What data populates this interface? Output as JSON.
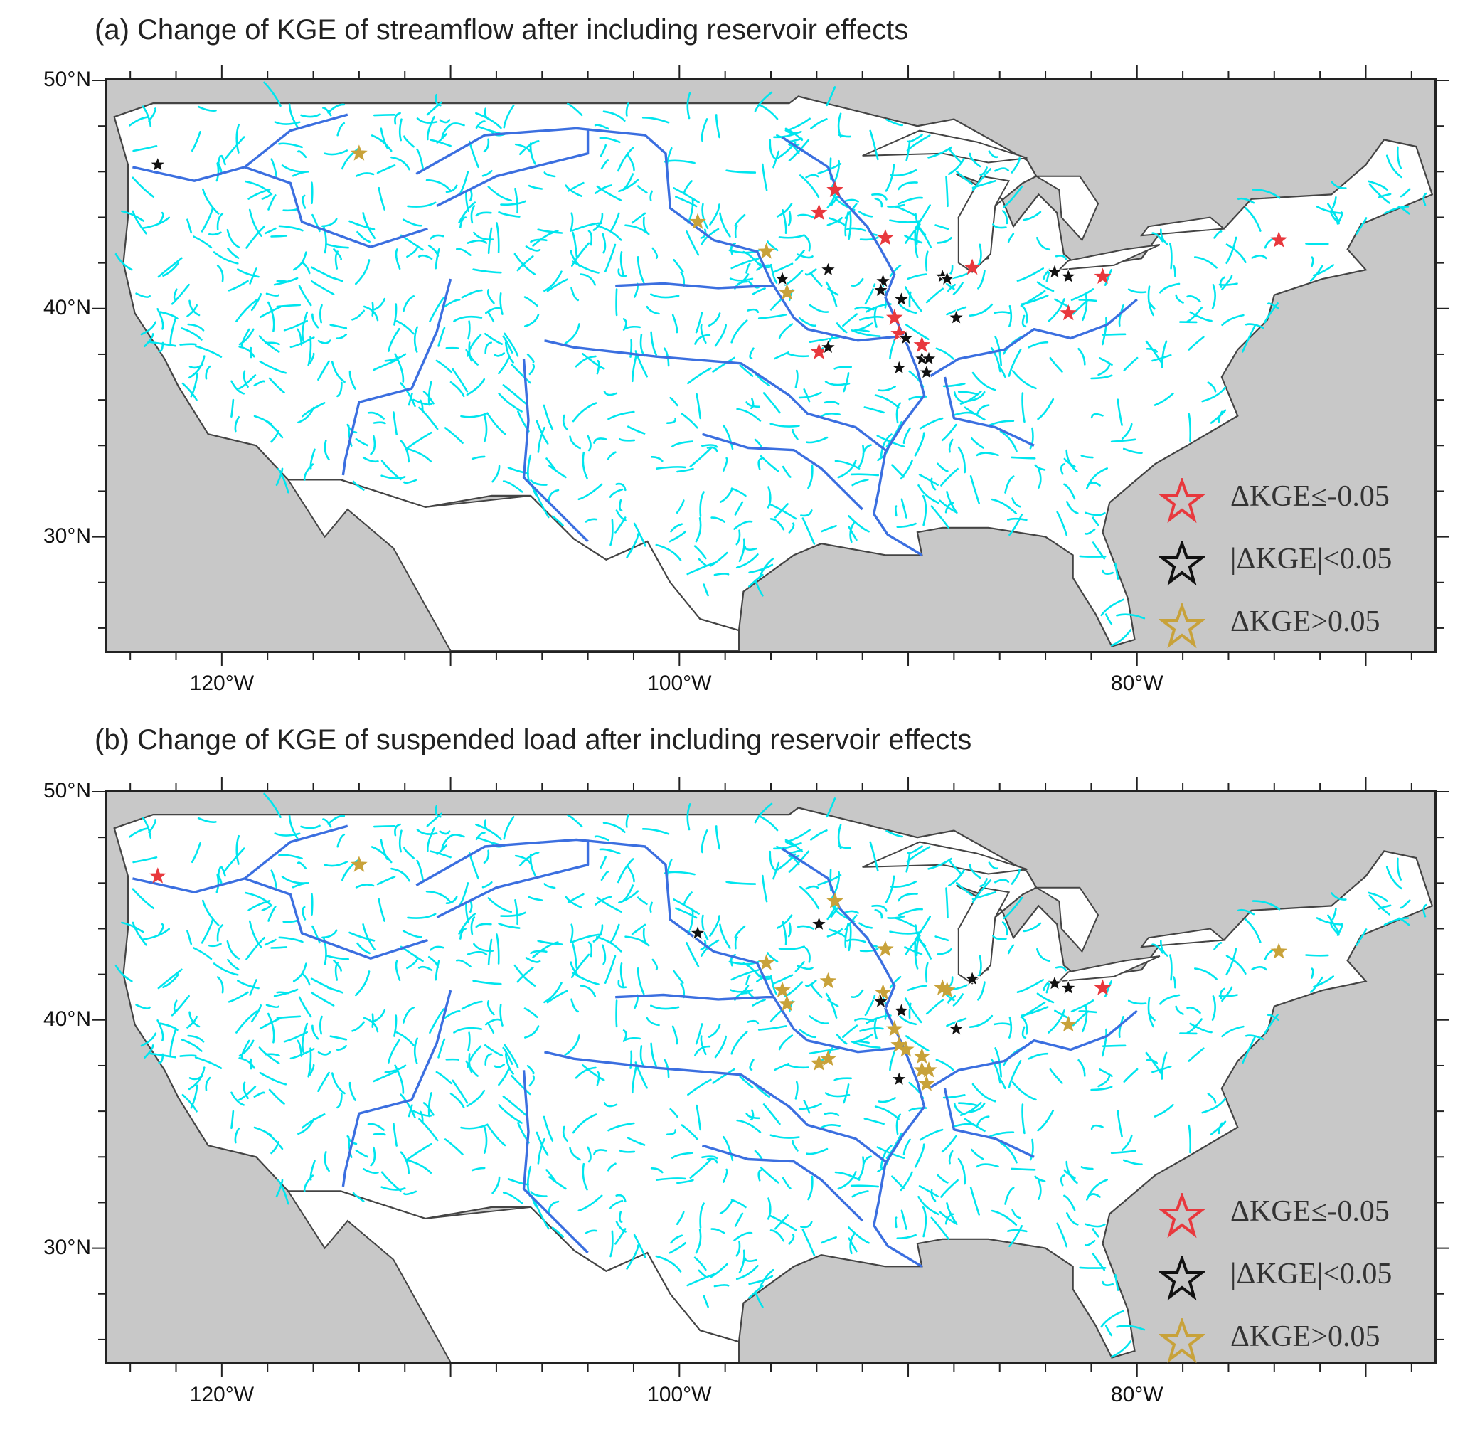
{
  "extent": {
    "lon_min": -125,
    "lon_max": -67,
    "lat_min": 25,
    "lat_max": 50
  },
  "colors": {
    "land": "#ffffff",
    "water_ocean": "#c8c8c8",
    "small_river": "#00e5ee",
    "major_river": "#3b6fe0",
    "coast": "#444444",
    "decrease": "#e8383d",
    "neutral": "#111111",
    "increase": "#c8a23a"
  },
  "axes": {
    "lat_ticks": [
      {
        "value": 50,
        "label": "50°N"
      },
      {
        "value": 40,
        "label": "40°N"
      },
      {
        "value": 30,
        "label": "30°N"
      }
    ],
    "lon_ticks": [
      {
        "value": -120,
        "label": "120°W"
      },
      {
        "value": -100,
        "label": "100°W"
      },
      {
        "value": -80,
        "label": "80°W"
      }
    ]
  },
  "legend": [
    {
      "category": "decrease",
      "label": "ΔKGE≤-0.05"
    },
    {
      "category": "neutral",
      "label": "|ΔKGE|<0.05"
    },
    {
      "category": "increase",
      "label": "ΔKGE>0.05"
    }
  ],
  "panels": [
    {
      "id": "a",
      "title": "(a) Change of KGE of streamflow after including reservoir effects",
      "sites": [
        {
          "lon": -122.8,
          "lat": 46.3,
          "cat": "neutral"
        },
        {
          "lon": -114.0,
          "lat": 46.8,
          "cat": "increase"
        },
        {
          "lon": -99.2,
          "lat": 43.8,
          "cat": "increase"
        },
        {
          "lon": -96.2,
          "lat": 42.5,
          "cat": "increase"
        },
        {
          "lon": -95.5,
          "lat": 41.3,
          "cat": "neutral"
        },
        {
          "lon": -95.3,
          "lat": 40.7,
          "cat": "increase"
        },
        {
          "lon": -93.9,
          "lat": 44.2,
          "cat": "decrease"
        },
        {
          "lon": -93.2,
          "lat": 45.2,
          "cat": "decrease"
        },
        {
          "lon": -91.0,
          "lat": 43.1,
          "cat": "decrease"
        },
        {
          "lon": -93.5,
          "lat": 41.7,
          "cat": "neutral"
        },
        {
          "lon": -91.1,
          "lat": 41.2,
          "cat": "neutral"
        },
        {
          "lon": -91.2,
          "lat": 40.8,
          "cat": "neutral"
        },
        {
          "lon": -90.3,
          "lat": 40.4,
          "cat": "neutral"
        },
        {
          "lon": -88.5,
          "lat": 41.4,
          "cat": "neutral"
        },
        {
          "lon": -88.3,
          "lat": 41.3,
          "cat": "neutral"
        },
        {
          "lon": -87.2,
          "lat": 41.8,
          "cat": "decrease"
        },
        {
          "lon": -87.9,
          "lat": 39.6,
          "cat": "neutral"
        },
        {
          "lon": -90.6,
          "lat": 39.6,
          "cat": "decrease"
        },
        {
          "lon": -90.4,
          "lat": 38.9,
          "cat": "decrease"
        },
        {
          "lon": -90.1,
          "lat": 38.7,
          "cat": "neutral"
        },
        {
          "lon": -89.4,
          "lat": 38.4,
          "cat": "decrease"
        },
        {
          "lon": -93.9,
          "lat": 38.1,
          "cat": "decrease"
        },
        {
          "lon": -93.5,
          "lat": 38.3,
          "cat": "neutral"
        },
        {
          "lon": -90.4,
          "lat": 37.4,
          "cat": "neutral"
        },
        {
          "lon": -89.4,
          "lat": 37.8,
          "cat": "neutral"
        },
        {
          "lon": -89.1,
          "lat": 37.8,
          "cat": "neutral"
        },
        {
          "lon": -89.2,
          "lat": 37.2,
          "cat": "neutral"
        },
        {
          "lon": -83.6,
          "lat": 41.6,
          "cat": "neutral"
        },
        {
          "lon": -83.0,
          "lat": 41.4,
          "cat": "neutral"
        },
        {
          "lon": -81.5,
          "lat": 41.4,
          "cat": "decrease"
        },
        {
          "lon": -83.0,
          "lat": 39.8,
          "cat": "decrease"
        },
        {
          "lon": -73.8,
          "lat": 43.0,
          "cat": "decrease"
        }
      ]
    },
    {
      "id": "b",
      "title": "(b) Change of KGE of suspended load after including reservoir effects",
      "sites": [
        {
          "lon": -122.8,
          "lat": 46.3,
          "cat": "decrease"
        },
        {
          "lon": -114.0,
          "lat": 46.8,
          "cat": "increase"
        },
        {
          "lon": -99.2,
          "lat": 43.8,
          "cat": "neutral"
        },
        {
          "lon": -96.2,
          "lat": 42.5,
          "cat": "increase"
        },
        {
          "lon": -95.5,
          "lat": 41.3,
          "cat": "increase"
        },
        {
          "lon": -95.3,
          "lat": 40.7,
          "cat": "increase"
        },
        {
          "lon": -93.9,
          "lat": 44.2,
          "cat": "neutral"
        },
        {
          "lon": -93.2,
          "lat": 45.2,
          "cat": "increase"
        },
        {
          "lon": -91.0,
          "lat": 43.1,
          "cat": "increase"
        },
        {
          "lon": -93.5,
          "lat": 41.7,
          "cat": "increase"
        },
        {
          "lon": -91.1,
          "lat": 41.2,
          "cat": "increase"
        },
        {
          "lon": -91.2,
          "lat": 40.8,
          "cat": "neutral"
        },
        {
          "lon": -90.3,
          "lat": 40.4,
          "cat": "neutral"
        },
        {
          "lon": -88.5,
          "lat": 41.4,
          "cat": "increase"
        },
        {
          "lon": -88.3,
          "lat": 41.3,
          "cat": "increase"
        },
        {
          "lon": -87.2,
          "lat": 41.8,
          "cat": "neutral"
        },
        {
          "lon": -87.9,
          "lat": 39.6,
          "cat": "neutral"
        },
        {
          "lon": -90.6,
          "lat": 39.6,
          "cat": "increase"
        },
        {
          "lon": -90.4,
          "lat": 38.9,
          "cat": "increase"
        },
        {
          "lon": -90.1,
          "lat": 38.7,
          "cat": "increase"
        },
        {
          "lon": -89.4,
          "lat": 38.4,
          "cat": "increase"
        },
        {
          "lon": -93.9,
          "lat": 38.1,
          "cat": "increase"
        },
        {
          "lon": -93.5,
          "lat": 38.3,
          "cat": "increase"
        },
        {
          "lon": -90.4,
          "lat": 37.4,
          "cat": "neutral"
        },
        {
          "lon": -89.4,
          "lat": 37.8,
          "cat": "increase"
        },
        {
          "lon": -89.1,
          "lat": 37.8,
          "cat": "increase"
        },
        {
          "lon": -89.2,
          "lat": 37.2,
          "cat": "increase"
        },
        {
          "lon": -83.6,
          "lat": 41.6,
          "cat": "neutral"
        },
        {
          "lon": -83.0,
          "lat": 41.4,
          "cat": "neutral"
        },
        {
          "lon": -81.5,
          "lat": 41.4,
          "cat": "decrease"
        },
        {
          "lon": -83.0,
          "lat": 39.8,
          "cat": "increase"
        },
        {
          "lon": -73.8,
          "lat": 43.0,
          "cat": "increase"
        }
      ]
    }
  ]
}
